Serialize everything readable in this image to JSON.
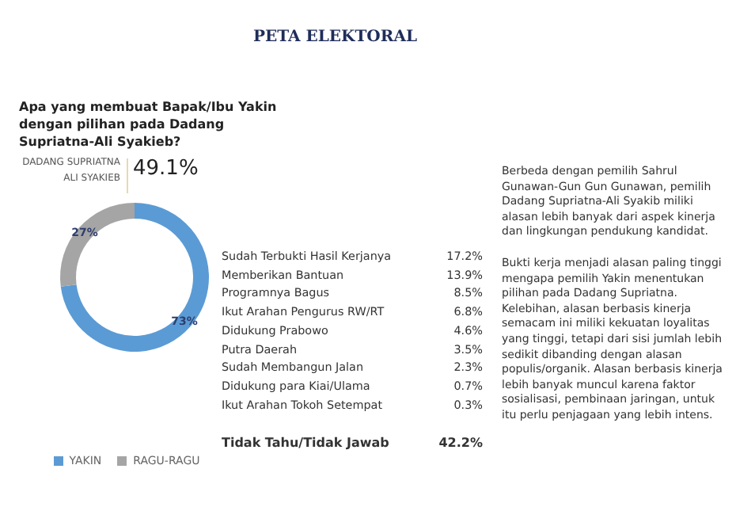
{
  "chart_data": {
    "type": "donut",
    "title": "PETA ELEKTORAL",
    "subtitle": "Apa yang membuat Bapak/Ibu Yakin dengan pilihan pada Dadang Supriatna-Ali Syakieb?",
    "categories": [
      "YAKIN",
      "RAGU-RAGU"
    ],
    "values": [
      73,
      27
    ],
    "colors": [
      "#5b9bd5",
      "#a5a5a5"
    ],
    "value_labels": [
      "73%",
      "27%"
    ],
    "legend": "bottom",
    "annotations": [
      "DADANG SUPRIATNA ALI SYAKIEB",
      "49.1%",
      "Sudah Terbukti Hasil Kerjanya",
      "17.2%",
      "Memberikan Bantuan",
      "13.9%",
      "Programnya Bagus",
      "8.5%",
      "Ikut Arahan Pengurus RW/RT",
      "6.8%",
      "Didukung Prabowo",
      "4.6%",
      "Putra Daerah",
      "3.5%",
      "Sudah Membangun Jalan",
      "2.3%",
      "Didukung para Kiai/Ulama",
      "0.7%",
      "Ikut Arahan Tokoh Setempat",
      "0.3%",
      "Tidak Tahu/Tidak Jawab",
      "42.2%",
      "Berbeda dengan pemilih Sahrul Gunawan-Gun Gun Gunawan, pemilih Dadang Supriatna-Ali Syakib miliki alasan lebih banyak dari aspek kinerja dan lingkungan pendukung kandidat.",
      "Bukti kerja menjadi alasan paling tinggi mengapa pemilih Yakin menentukan pilihan pada Dadang Supriatna. Kelebihan, alasan berbasis kinerja semacam ini miliki kekuatan loyalitas yang tinggi, tetapi dari sisi jumlah lebih sedikit dibanding dengan alasan populis/organik. Alasan berbasis kinerja lebih banyak muncul karena faktor sosialisasi, pembinaan jaringan, untuk itu perlu penjagaan yang lebih intens."
    ]
  }
}
